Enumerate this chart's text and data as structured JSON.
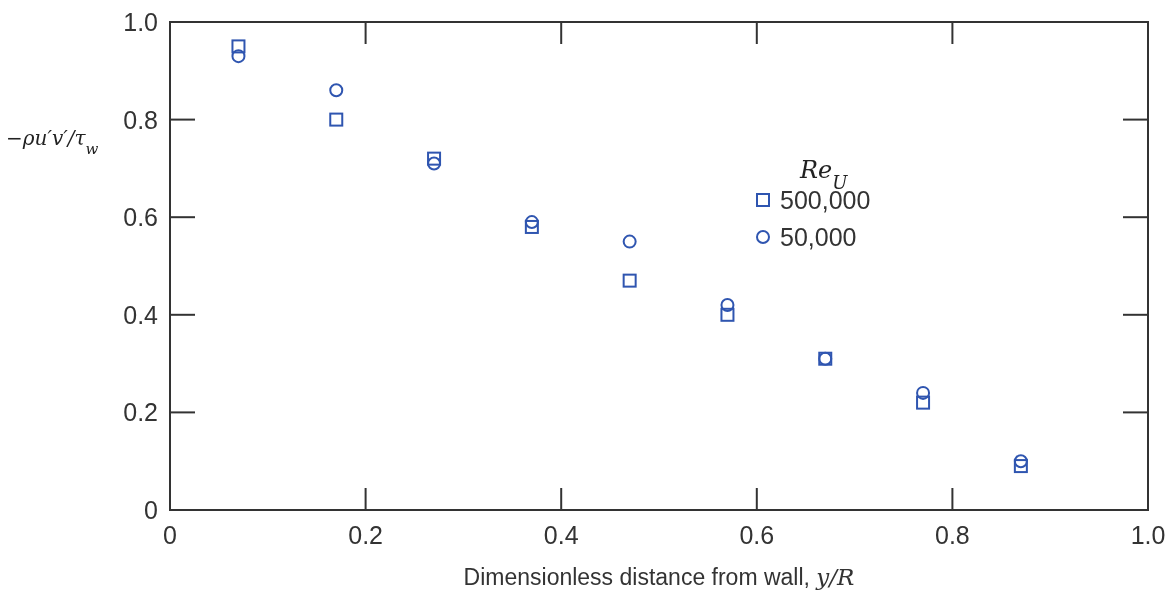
{
  "chart_data": {
    "type": "scatter",
    "xlabel": "Dimensionless distance from wall, y/R",
    "ylabel": "−ρu′v′/τ$_{w}$",
    "legend_title": "Re$_{U}$",
    "xlim": [
      0,
      1.0
    ],
    "xticks": [
      0,
      0.2,
      0.4,
      0.6,
      0.8,
      {
        "value": 1,
        "label": "1.0"
      }
    ],
    "ylim": [
      0,
      1.0
    ],
    "yticks": [
      0,
      0.2,
      0.4,
      0.6,
      0.8,
      {
        "value": 1,
        "label": "1.0"
      }
    ],
    "grid": false,
    "legend": "right",
    "series": [
      {
        "name": "500,000",
        "color": "#2f55b0",
        "marker": "square",
        "x": [
          0.07,
          0.17,
          0.27,
          0.37,
          0.47,
          0.57,
          0.67,
          0.77,
          0.87
        ],
        "values": [
          0.95,
          0.8,
          0.72,
          0.58,
          0.47,
          0.4,
          0.31,
          0.22,
          0.09
        ]
      },
      {
        "name": "50,000",
        "color": "#2f55b0",
        "marker": "circle",
        "x": [
          0.07,
          0.17,
          0.27,
          0.37,
          0.47,
          0.57,
          0.67,
          0.77,
          0.87
        ],
        "values": [
          0.93,
          0.86,
          0.71,
          0.59,
          0.55,
          0.42,
          0.31,
          0.24,
          0.1
        ]
      }
    ]
  }
}
